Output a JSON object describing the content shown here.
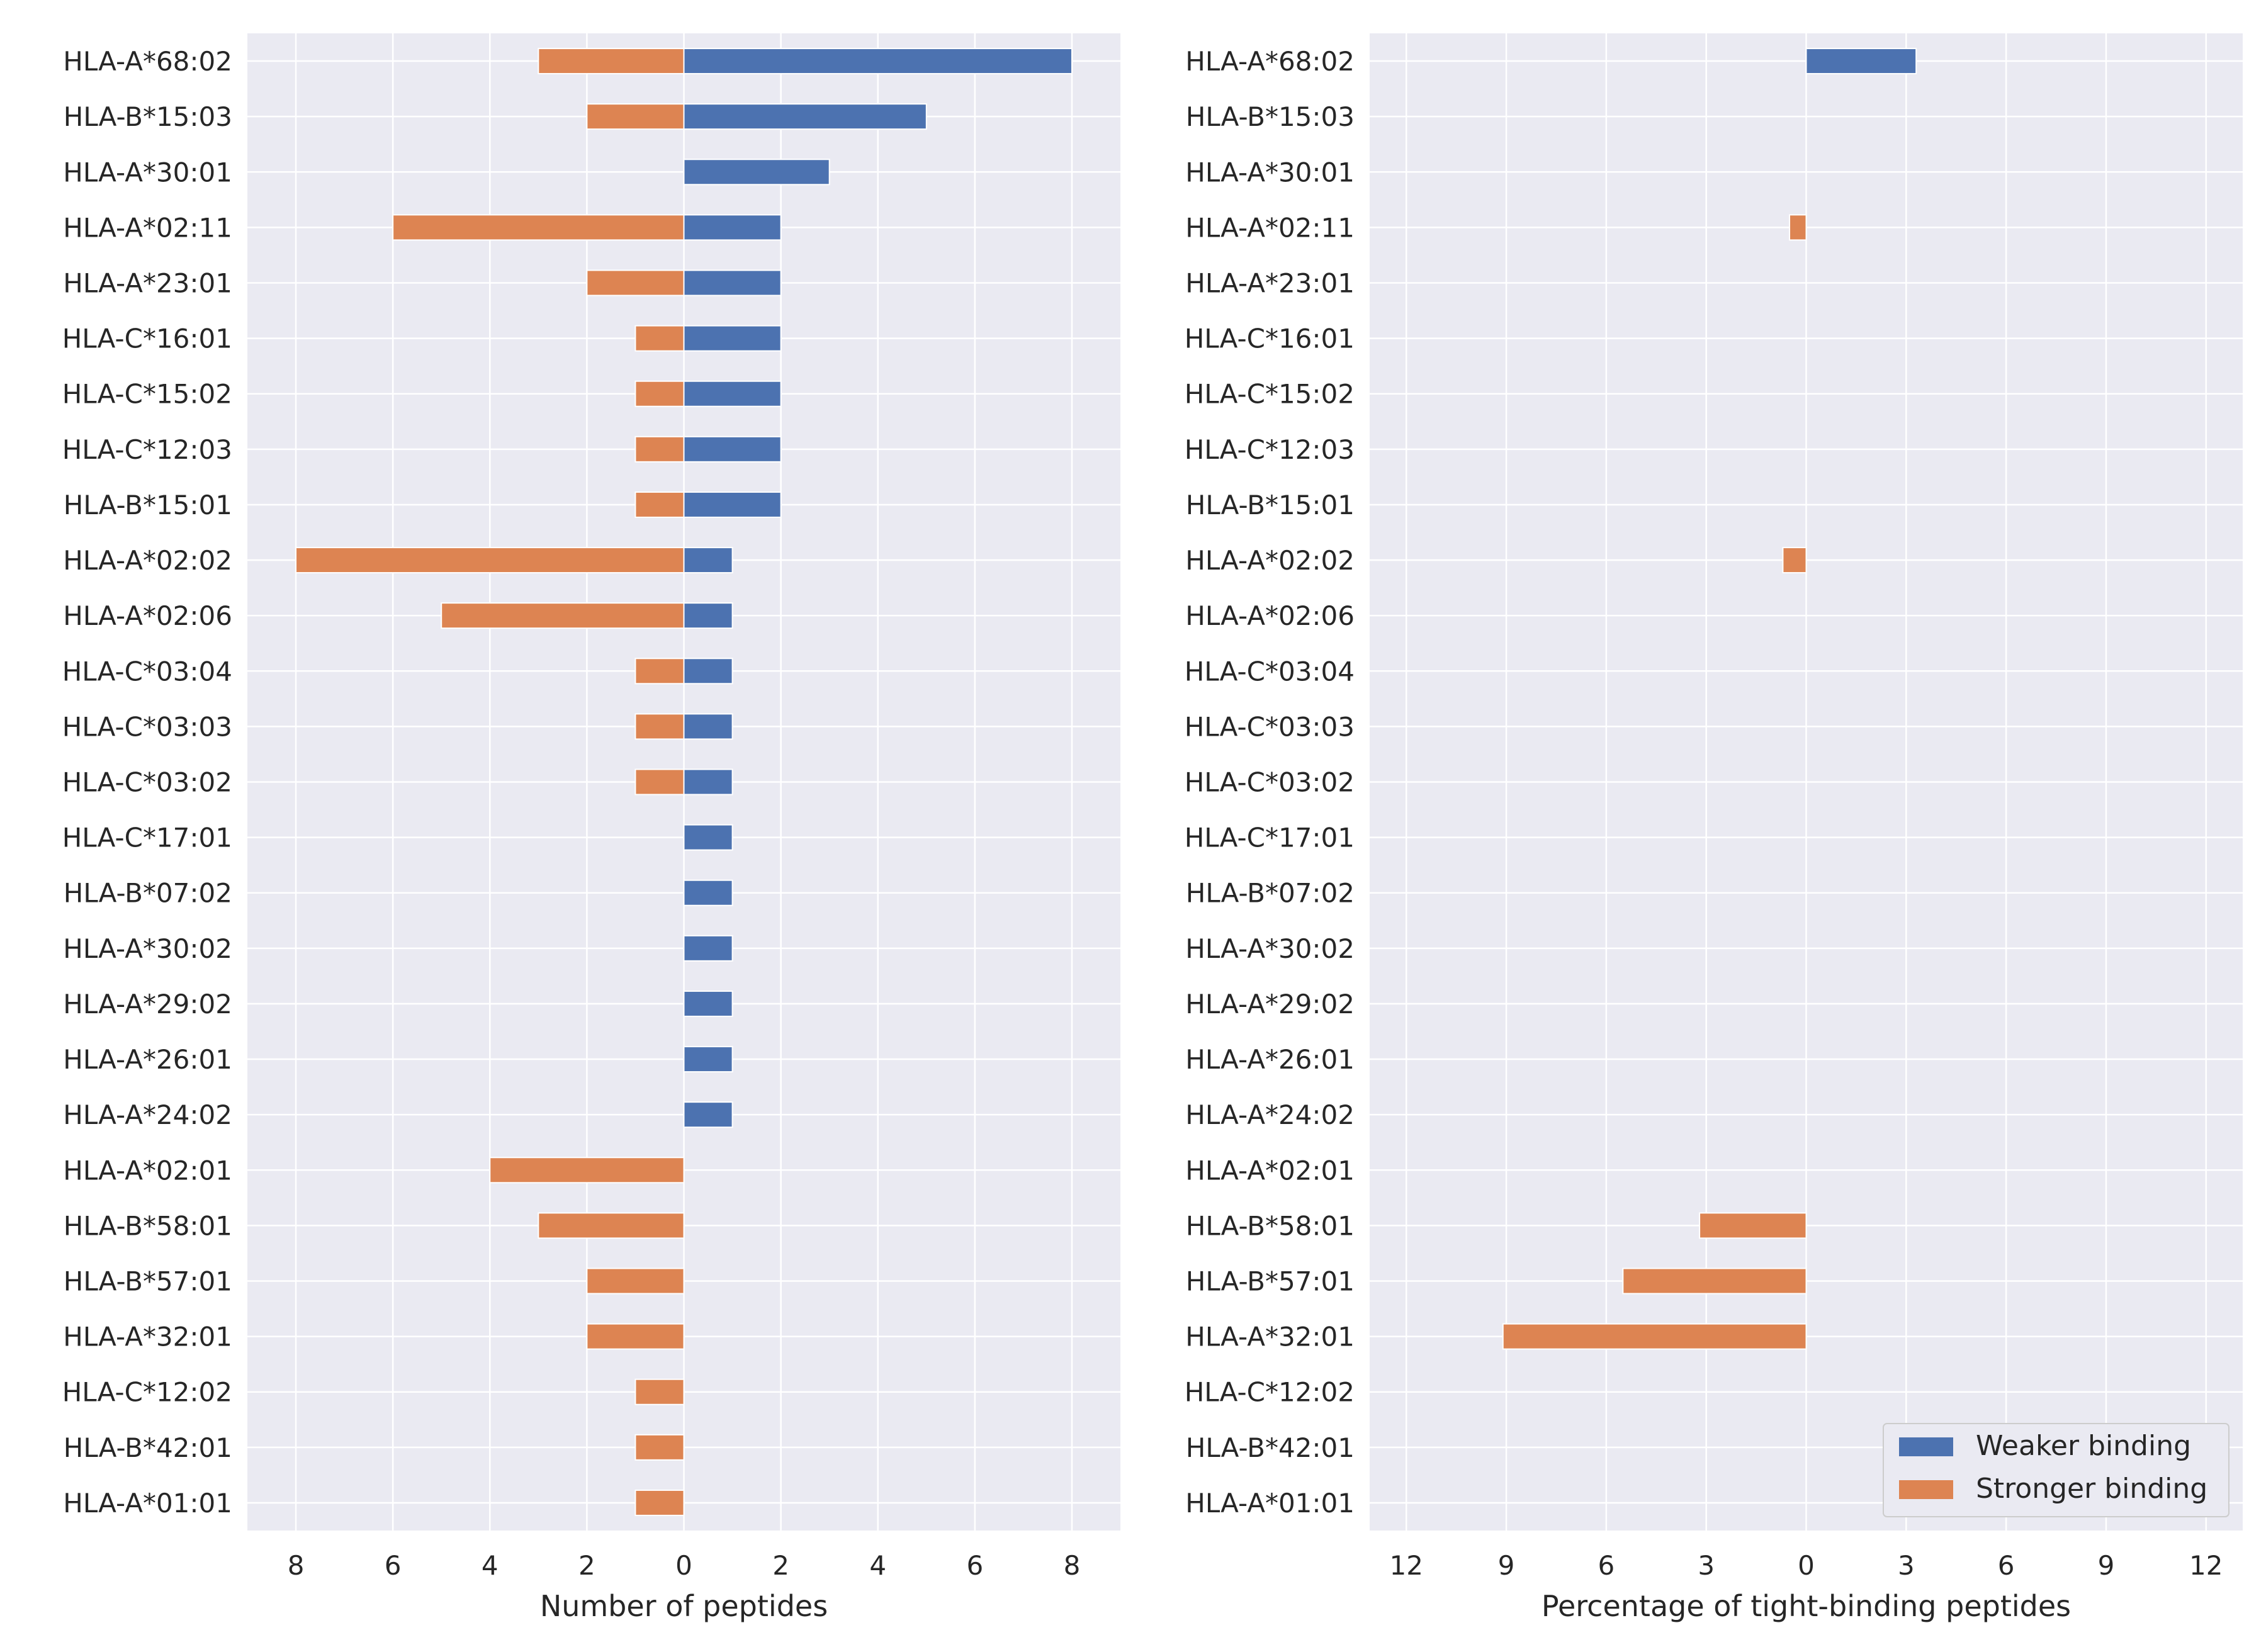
{
  "chart_data": [
    {
      "type": "bar",
      "orientation": "horizontal",
      "xlabel": "Number of peptides",
      "xlim": [
        -9,
        9
      ],
      "xticks": [
        -8,
        -6,
        -4,
        -2,
        0,
        2,
        4,
        6,
        8
      ],
      "xtick_labels": [
        "8",
        "6",
        "4",
        "2",
        "0",
        "2",
        "4",
        "6",
        "8"
      ],
      "grid": true,
      "categories": [
        "HLA-A*68:02",
        "HLA-B*15:03",
        "HLA-A*30:01",
        "HLA-A*02:11",
        "HLA-A*23:01",
        "HLA-C*16:01",
        "HLA-C*15:02",
        "HLA-C*12:03",
        "HLA-B*15:01",
        "HLA-A*02:02",
        "HLA-A*02:06",
        "HLA-C*03:04",
        "HLA-C*03:03",
        "HLA-C*03:02",
        "HLA-C*17:01",
        "HLA-B*07:02",
        "HLA-A*30:02",
        "HLA-A*29:02",
        "HLA-A*26:01",
        "HLA-A*24:02",
        "HLA-A*02:01",
        "HLA-B*58:01",
        "HLA-B*57:01",
        "HLA-A*32:01",
        "HLA-C*12:02",
        "HLA-B*42:01",
        "HLA-A*01:01"
      ],
      "series": [
        {
          "name": "Weaker binding",
          "color": "#4c72b0",
          "values": [
            8,
            5,
            3,
            2,
            2,
            2,
            2,
            2,
            2,
            1,
            1,
            1,
            1,
            1,
            1,
            1,
            1,
            1,
            1,
            1,
            0,
            0,
            0,
            0,
            0,
            0,
            0
          ]
        },
        {
          "name": "Stronger binding",
          "color": "#dd8452",
          "values": [
            -3,
            -2,
            0,
            -6,
            -2,
            -1,
            -1,
            -1,
            -1,
            -8,
            -5,
            -1,
            -1,
            -1,
            0,
            0,
            0,
            0,
            0,
            0,
            -4,
            -3,
            -2,
            -2,
            -1,
            -1,
            -1
          ]
        }
      ]
    },
    {
      "type": "bar",
      "orientation": "horizontal",
      "xlabel": "Percentage of tight-binding peptides",
      "xlim": [
        -13.1,
        13.1
      ],
      "xticks": [
        -12,
        -9,
        -6,
        -3,
        0,
        3,
        6,
        9,
        12
      ],
      "xtick_labels": [
        "12",
        "9",
        "6",
        "3",
        "0",
        "3",
        "6",
        "9",
        "12"
      ],
      "grid": true,
      "legend_position": "lower-right",
      "categories": [
        "HLA-A*68:02",
        "HLA-B*15:03",
        "HLA-A*30:01",
        "HLA-A*02:11",
        "HLA-A*23:01",
        "HLA-C*16:01",
        "HLA-C*15:02",
        "HLA-C*12:03",
        "HLA-B*15:01",
        "HLA-A*02:02",
        "HLA-A*02:06",
        "HLA-C*03:04",
        "HLA-C*03:03",
        "HLA-C*03:02",
        "HLA-C*17:01",
        "HLA-B*07:02",
        "HLA-A*30:02",
        "HLA-A*29:02",
        "HLA-A*26:01",
        "HLA-A*24:02",
        "HLA-A*02:01",
        "HLA-B*58:01",
        "HLA-B*57:01",
        "HLA-A*32:01",
        "HLA-C*12:02",
        "HLA-B*42:01",
        "HLA-A*01:01"
      ],
      "series": [
        {
          "name": "Weaker binding",
          "color": "#4c72b0",
          "values": [
            3.3,
            0,
            0,
            0,
            0,
            0,
            0,
            0,
            0,
            0,
            0,
            0,
            0,
            0,
            0,
            0,
            0,
            0,
            0,
            0,
            0,
            0,
            0,
            0,
            0,
            0,
            0
          ]
        },
        {
          "name": "Stronger binding",
          "color": "#dd8452",
          "values": [
            0,
            0,
            0,
            -0.5,
            0,
            0,
            0,
            0,
            0,
            -0.7,
            0,
            0,
            0,
            0,
            0,
            0,
            0,
            0,
            0,
            0,
            0,
            -3.2,
            -5.5,
            -9.1,
            0,
            0,
            0
          ]
        }
      ]
    }
  ],
  "legend": {
    "items": [
      {
        "label": "Weaker binding",
        "color": "#4c72b0"
      },
      {
        "label": "Stronger binding",
        "color": "#dd8452"
      }
    ]
  }
}
